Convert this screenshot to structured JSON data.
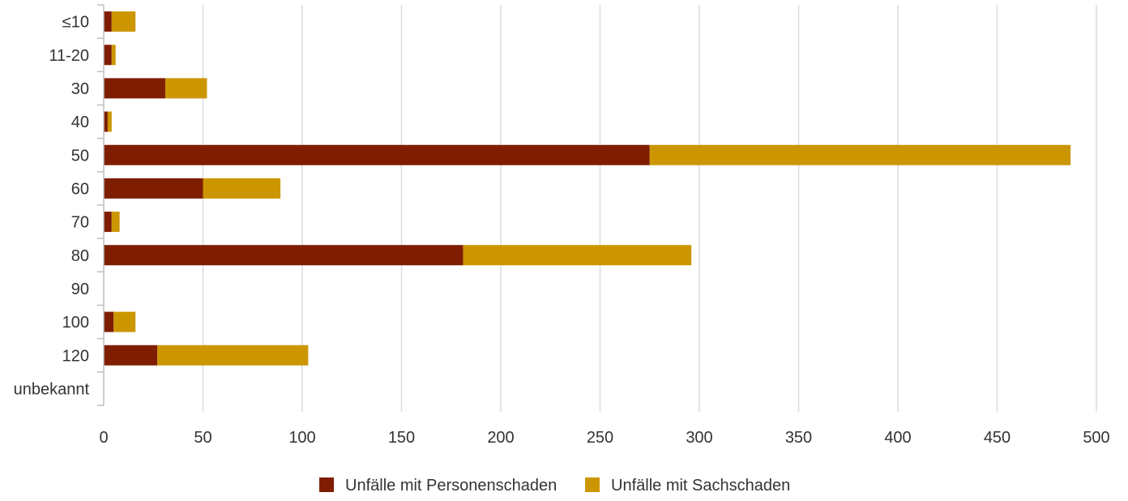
{
  "chart_data": {
    "type": "bar",
    "orientation": "horizontal",
    "stacked": true,
    "categories": [
      "≤10",
      "11-20",
      "30",
      "40",
      "50",
      "60",
      "70",
      "80",
      "90",
      "100",
      "120",
      "unbekannt"
    ],
    "series": [
      {
        "name": "Unfälle mit Personenschaden",
        "color": "#7f1d00",
        "values": [
          4,
          4,
          31,
          2,
          275,
          50,
          4,
          181,
          0,
          5,
          27,
          0
        ]
      },
      {
        "name": "Unfälle mit Sachschaden",
        "color": "#cc9600",
        "values": [
          12,
          2,
          21,
          2,
          212,
          39,
          4,
          115,
          0,
          11,
          76,
          0
        ]
      }
    ],
    "xlim": [
      0,
      500
    ],
    "xticks": [
      0,
      50,
      100,
      150,
      200,
      250,
      300,
      350,
      400,
      450,
      500
    ],
    "grid": "vertical",
    "legend_position": "bottom"
  }
}
